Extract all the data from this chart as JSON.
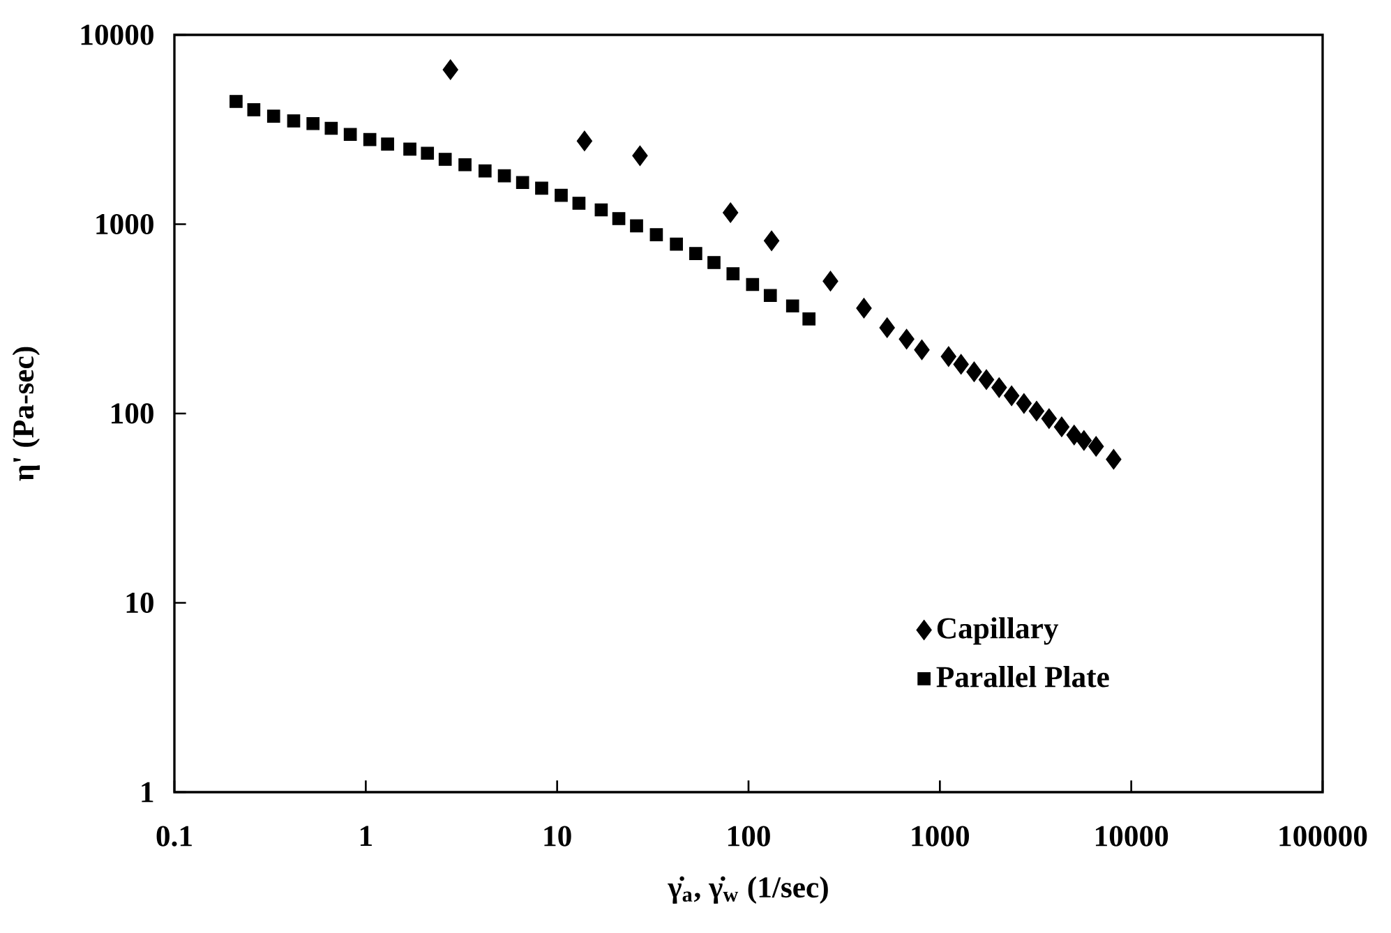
{
  "chart_data": {
    "type": "scatter",
    "xlabel": "γ̇$_{a}$, γ̇$_{w}$ (1/sec)",
    "ylabel": "η' (Pa-sec)",
    "log": "xy",
    "xlim": [
      0.1,
      100000
    ],
    "ylim": [
      1,
      10000
    ],
    "xticks": [
      0.1,
      1,
      10,
      100,
      1000,
      10000,
      100000
    ],
    "yticks": [
      1,
      10,
      100,
      1000,
      10000
    ],
    "grid": false,
    "legend": "bottom right",
    "series": [
      {
        "name": "Capillary",
        "color": "#000000",
        "marker": "diamond",
        "x": [
          2.77,
          13.9,
          27.1,
          80.5,
          132,
          268,
          401,
          530,
          670,
          805,
          1110,
          1290,
          1510,
          1750,
          2040,
          2370,
          2750,
          3200,
          3720,
          4330,
          5030,
          5660,
          6550,
          8090
        ],
        "values": [
          6550,
          2750,
          2300,
          1150,
          817,
          500,
          360,
          284,
          247,
          217,
          200,
          182,
          166,
          151,
          137,
          124,
          113,
          103,
          94,
          85,
          77,
          72,
          67,
          57.3
        ]
      },
      {
        "name": "Parallel Plate",
        "color": "#000000",
        "marker": "square",
        "x": [
          0.21,
          0.26,
          0.33,
          0.42,
          0.53,
          0.66,
          0.83,
          1.05,
          1.3,
          1.7,
          2.1,
          2.6,
          3.3,
          4.2,
          5.3,
          6.6,
          8.3,
          10.5,
          13,
          17,
          21,
          26,
          33,
          42,
          53,
          66,
          83,
          105,
          130,
          170,
          207
        ],
        "values": [
          4450,
          4020,
          3720,
          3510,
          3400,
          3210,
          2980,
          2800,
          2650,
          2490,
          2370,
          2200,
          2060,
          1910,
          1800,
          1660,
          1550,
          1420,
          1290,
          1190,
          1070,
          980,
          880,
          785,
          700,
          627,
          547,
          480,
          420,
          370,
          316
        ]
      }
    ]
  }
}
